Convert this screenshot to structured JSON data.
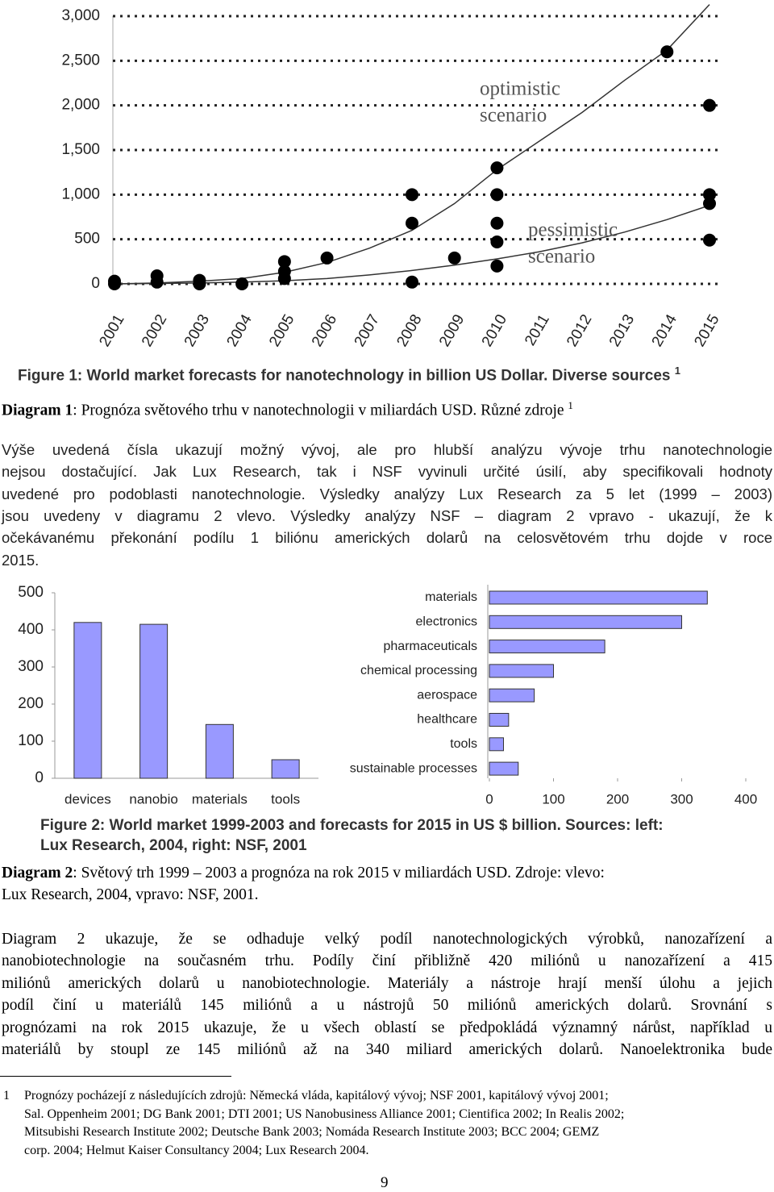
{
  "chart_data": [
    {
      "type": "scatter",
      "ylim": [
        0,
        3000
      ],
      "yticks": [
        0,
        500,
        {
          "value": 1000,
          "label": "1,000"
        },
        {
          "value": 1500,
          "label": "1,500"
        },
        {
          "value": 2000,
          "label": "2,000"
        },
        {
          "value": 2500,
          "label": "2,500"
        },
        {
          "value": 3000,
          "label": "3,000"
        }
      ],
      "xlim": [
        2001,
        2015
      ],
      "xticks": [
        2001,
        2002,
        2003,
        2004,
        2005,
        2006,
        2007,
        2008,
        2009,
        2010,
        2011,
        2012,
        2013,
        2014,
        2015
      ],
      "grid": true,
      "series": [
        {
          "color": "#000000",
          "x": [
            2001,
            2001,
            2002,
            2002,
            2003,
            2003,
            2004,
            2005,
            2005,
            2005,
            2006,
            2008,
            2008,
            2008,
            2009,
            2010,
            2010,
            2010,
            2010,
            2010,
            2014,
            2015,
            2015,
            2015,
            2015
          ],
          "values": [
            30,
            0,
            90,
            20,
            40,
            0,
            0,
            250,
            140,
            60,
            290,
            1000,
            680,
            20,
            290,
            1300,
            1000,
            680,
            470,
            200,
            2600,
            2000,
            1000,
            900,
            490
          ]
        }
      ],
      "curves": [
        {
          "color": "#333333",
          "x": [
            2001,
            2002,
            2003,
            2004,
            2005,
            2006,
            2007,
            2008,
            2009,
            2010,
            2011,
            2012,
            2013,
            2014,
            2015
          ],
          "values": [
            0,
            10,
            30,
            60,
            130,
            240,
            400,
            600,
            900,
            1280,
            1600,
            1920,
            2280,
            2620,
            3130
          ]
        },
        {
          "color": "#333333",
          "x": [
            2001,
            2002,
            2003,
            2004,
            2005,
            2006,
            2007,
            2008,
            2009,
            2010,
            2011,
            2012,
            2013,
            2014,
            2015
          ],
          "values": [
            0,
            5,
            10,
            20,
            35,
            60,
            100,
            150,
            210,
            280,
            360,
            460,
            580,
            720,
            880
          ]
        }
      ],
      "annotations": [
        [
          "optimistic",
          "scenario"
        ],
        [
          "pessimistic",
          "scenario"
        ]
      ]
    },
    {
      "type": "bar",
      "categories": [
        "devices",
        "nanobio",
        "materials",
        "tools"
      ],
      "values": [
        420,
        415,
        145,
        50
      ],
      "color": "#9999ff",
      "ylim": [
        0,
        500
      ],
      "yticks": [
        0,
        100,
        200,
        300,
        400,
        500
      ]
    },
    {
      "type": "barh",
      "categories": [
        "materials",
        "electronics",
        "pharmaceuticals",
        "chemical processing",
        "aerospace",
        "healthcare",
        "tools",
        "sustainable processes"
      ],
      "values": [
        340,
        300,
        180,
        100,
        70,
        30,
        22,
        45
      ],
      "color": "#9999ff",
      "xlim": [
        0,
        400
      ],
      "xticks": [
        0,
        100,
        200,
        300,
        400
      ]
    }
  ],
  "figure1_caption": {
    "text": "Figure 1: World market forecasts for nanotechnology in billion US Dollar. Diverse sources",
    "sup": "1"
  },
  "diagram1_caption": {
    "label": "Diagram 1",
    "text": ": Prognóza světového trhu v nanotechnologii v miliardách USD. Různé zdroje ",
    "sup": "1"
  },
  "paragraph1": [
    "Výše uvedená čísla ukazují možný vývoj, ale pro hlubší analýzu vývoje trhu nanotechnologie",
    "nejsou dostačující. Jak Lux Research, tak i NSF vyvinuli určité úsilí, aby specifikovali hodnoty",
    "uvedené pro podoblasti nanotechnologie. Výsledky analýzy Lux Research za 5 let (1999 – 2003)",
    "jsou uvedeny v diagramu 2 vlevo. Výsledky analýzy NSF – diagram 2 vpravo - ukazují, že k",
    "očekávanému překonání podílu 1 biliónu amerických dolarů na celosvětovém trhu dojde v roce",
    "2015."
  ],
  "figure2_caption": [
    "Figure 2: World market 1999-2003 and forecasts for 2015 in US $ billion. Sources: left:",
    "Lux Research, 2004, right: NSF, 2001"
  ],
  "diagram2_caption": {
    "label": "Diagram 2",
    "lines": [
      ": Světový trh 1999 – 2003 a prognóza na rok 2015 v miliardách USD. Zdroje: vlevo:",
      "Lux Research, 2004, vpravo: NSF, 2001."
    ]
  },
  "paragraph2": [
    "Diagram 2 ukazuje, že se odhaduje velký podíl nanotechnologických výrobků, nanozařízení a",
    "nanobiotechnologie na současném trhu. Podíly činí přibližně 420 miliónů u nanozařízení a 415",
    "miliónů amerických dolarů u nanobiotechnologie. Materiály a nástroje hrají menší úlohu a jejich",
    "podíl činí u materiálů 145 miliónů a u nástrojů 50 miliónů amerických dolarů. Srovnání s",
    "prognózami na rok 2015 ukazuje, že u všech oblastí se předpokládá významný nárůst, například u",
    "materiálů by stoupl ze 145 miliónů až na 340 miliard amerických dolarů. Nanoelektronika bude"
  ],
  "footnote": {
    "number": "1",
    "lines": [
      "Prognózy pocházejí z následujících zdrojů: Německá vláda, kapitálový vývoj; NSF 2001, kapitálový vývoj 2001;",
      "Sal. Oppenheim 2001; DG Bank 2001; DTI 2001; US Nanobusiness Alliance 2001; Cientifica 2002; In Realis 2002;",
      "Mitsubishi Research Institute 2002; Deutsche Bank 2003; Nomáda Research Institute 2003; BCC 2004; GEMZ",
      "corp. 2004; Helmut Kaiser Consultancy 2004; Lux Research 2004."
    ]
  },
  "page_number": "9"
}
